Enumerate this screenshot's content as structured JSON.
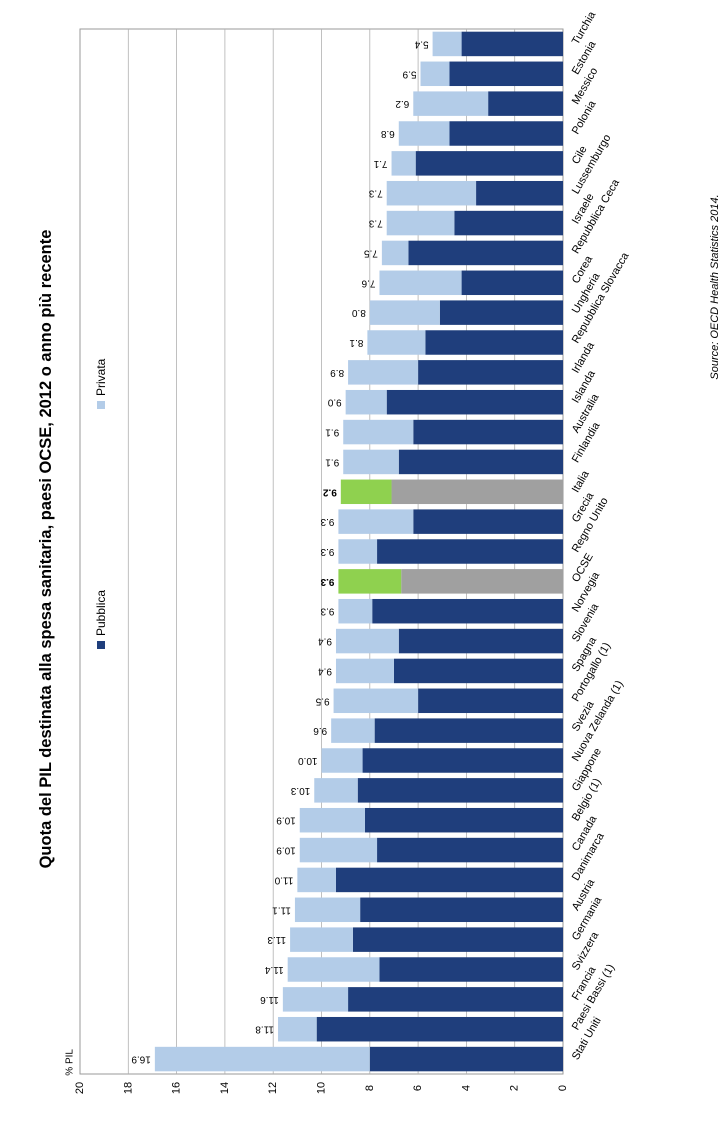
{
  "chart_data": {
    "type": "bar",
    "orientation": "horizontal-stacked",
    "title": "Quota del PIL destinata alla spesa sanitaria, paesi OCSE, 2012 o anno più recente",
    "ylabel": "% PIL",
    "source": "Source: OECD Health Statistics 2014.",
    "axis_ticks": [
      "0",
      "2",
      "4",
      "6",
      "8",
      "10",
      "12",
      "14",
      "16",
      "18",
      "20"
    ],
    "xlim": [
      0,
      20
    ],
    "grid": true,
    "legend": [
      {
        "name": "Pubblica",
        "color": "#1f3e7c"
      },
      {
        "name": "Privata",
        "color": "#b3cce8"
      }
    ],
    "categories": [
      "Stati Uniti",
      "Paesi Bassi (1)",
      "Francia",
      "Svizzera",
      "Germania",
      "Austria",
      "Danimarca",
      "Canada",
      "Belgio (1)",
      "Giappone",
      "Nuova Zelanda (1)",
      "Svezia",
      "Portogallo (1)",
      "Spagna",
      "Slovenia",
      "Norvegia",
      "OCSE",
      "Regno Unito",
      "Grecia",
      "Italia",
      "Finlandia",
      "Australia",
      "Islanda",
      "Irlanda",
      "Repubblica Slovacca",
      "Ungheria",
      "Corea",
      "Repubblica Ceca",
      "Israele",
      "Lussemburgo",
      "Cile",
      "Polonia",
      "Messico",
      "Estonia",
      "Turchia"
    ],
    "total_labels": [
      "16.9",
      "11.8",
      "11.6",
      "11.4",
      "11.3",
      "11.1",
      "11.0",
      "10.9",
      "10.9",
      "10.3",
      "10.0",
      "9.6",
      "9.5",
      "9.4",
      "9.4",
      "9.3",
      "9.3",
      "9.3",
      "9.3",
      "9.2",
      "9.1",
      "9.1",
      "9.0",
      "8.9",
      "8.1",
      "8.0",
      "7.6",
      "7.5",
      "7.3",
      "7.3",
      "7.1",
      "6.8",
      "6.2",
      "5.9",
      "5.4"
    ],
    "series": [
      {
        "name": "Pubblica",
        "values": [
          8.0,
          10.2,
          8.9,
          7.6,
          8.7,
          8.4,
          9.4,
          7.7,
          8.2,
          8.5,
          8.3,
          7.8,
          6.0,
          7.0,
          6.8,
          7.9,
          6.7,
          7.7,
          6.2,
          7.1,
          6.8,
          6.2,
          7.3,
          6.0,
          5.7,
          5.1,
          4.2,
          6.4,
          4.5,
          3.6,
          6.1,
          4.7,
          3.1,
          4.7,
          4.2
        ]
      },
      {
        "name": "Privata",
        "values": [
          8.9,
          1.6,
          2.7,
          3.8,
          2.6,
          2.7,
          1.6,
          3.2,
          2.7,
          1.8,
          1.7,
          1.8,
          3.5,
          2.4,
          2.6,
          1.4,
          2.6,
          1.6,
          3.1,
          2.1,
          2.3,
          2.9,
          1.7,
          2.9,
          2.4,
          2.9,
          3.4,
          1.1,
          2.8,
          3.7,
          1.0,
          2.1,
          3.1,
          1.2,
          1.2
        ]
      }
    ],
    "highlight_categories": [
      "OCSE",
      "Italia"
    ],
    "highlight_colors": {
      "public": "#a0a0a0",
      "private": "#8fd14f"
    }
  }
}
